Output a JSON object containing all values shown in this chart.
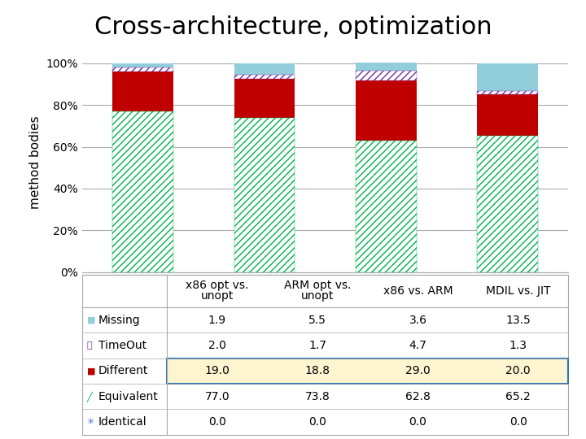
{
  "title": "Cross-architecture, optimization",
  "ylabel": "method bodies",
  "categories": [
    "x86 opt vs.\nunopt",
    "ARM opt vs.\nunopt",
    "x86 vs. ARM",
    "MDIL vs. JIT"
  ],
  "categories_table": [
    "x86 opt vs.\nunopt",
    "ARM opt vs.\nunopt",
    "x86 vs. ARM",
    "MDIL vs. JIT"
  ],
  "series_order": [
    "Identical",
    "Equivalent",
    "Different",
    "TimeOut",
    "Missing"
  ],
  "series": {
    "Identical": [
      0.0,
      0.0,
      0.0,
      0.0
    ],
    "Equivalent": [
      77.0,
      73.8,
      62.8,
      65.2
    ],
    "Different": [
      19.0,
      18.8,
      29.0,
      20.0
    ],
    "TimeOut": [
      2.0,
      1.7,
      4.7,
      1.3
    ],
    "Missing": [
      1.9,
      5.5,
      3.6,
      13.5
    ]
  },
  "colors": {
    "Identical": "#4472c4",
    "Equivalent": "#00b050",
    "Different": "#c00000",
    "TimeOut": "#7030a0",
    "Missing": "#92cddc"
  },
  "bar_width": 0.5,
  "ylim": [
    0,
    105
  ],
  "yticks": [
    0,
    20,
    40,
    60,
    80,
    100
  ],
  "ytick_labels": [
    "0%",
    "20%",
    "40%",
    "60%",
    "80%",
    "100%"
  ],
  "background_color": "#ffffff",
  "grid_color": "#aaaaaa",
  "table_highlight_color": "#fdf5d0",
  "table_border_color": "#2e75b6",
  "row_labels": [
    "Missing",
    "TimeOut",
    "Different",
    "Equivalent",
    "Identical"
  ],
  "row_data": {
    "Missing": [
      1.9,
      5.5,
      3.6,
      13.5
    ],
    "TimeOut": [
      2.0,
      1.7,
      4.7,
      1.3
    ],
    "Different": [
      19.0,
      18.8,
      29.0,
      20.0
    ],
    "Equivalent": [
      77.0,
      73.8,
      62.8,
      65.2
    ],
    "Identical": [
      0.0,
      0.0,
      0.0,
      0.0
    ]
  }
}
